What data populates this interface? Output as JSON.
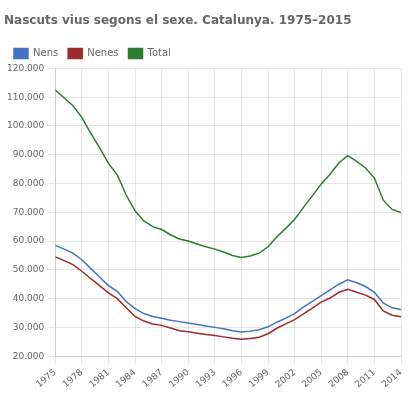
{
  "chart_data": {
    "type": "line",
    "title": "Nascuts vius segons el sexe. Catalunya. 1975–2015",
    "x": [
      1975,
      1976,
      1977,
      1978,
      1979,
      1980,
      1981,
      1982,
      1983,
      1984,
      1985,
      1986,
      1987,
      1988,
      1989,
      1990,
      1991,
      1992,
      1993,
      1994,
      1995,
      1996,
      1997,
      1998,
      1999,
      2000,
      2001,
      2002,
      2003,
      2004,
      2005,
      2006,
      2007,
      2008,
      2009,
      2010,
      2011,
      2012,
      2013,
      2014
    ],
    "series": [
      {
        "name": "Nens",
        "color": "#4472c4",
        "values": [
          58500,
          57200,
          55800,
          53500,
          50500,
          47500,
          44500,
          42500,
          39000,
          36500,
          34800,
          33800,
          33200,
          32500,
          32000,
          31500,
          31000,
          30500,
          30000,
          29500,
          28800,
          28400,
          28700,
          29200,
          30200,
          31800,
          33200,
          34800,
          37000,
          39000,
          41000,
          43000,
          45000,
          46500,
          45500,
          44200,
          42200,
          38500,
          36800,
          36200
        ]
      },
      {
        "name": "Nenes",
        "color": "#9e2a2b",
        "values": [
          54500,
          53200,
          51800,
          49500,
          47000,
          44500,
          42000,
          40000,
          36800,
          33800,
          32200,
          31200,
          30700,
          29800,
          28800,
          28500,
          28000,
          27500,
          27200,
          26700,
          26200,
          25900,
          26100,
          26600,
          27800,
          29700,
          31200,
          32700,
          34700,
          36700,
          38800,
          40200,
          42200,
          43200,
          42200,
          41200,
          39700,
          35700,
          34200,
          33700
        ]
      },
      {
        "name": "Total",
        "color": "#2e7d32",
        "values": [
          112500,
          109800,
          107000,
          103000,
          97500,
          92500,
          87000,
          83000,
          76000,
          70500,
          67000,
          65000,
          64000,
          62200,
          60700,
          60000,
          59000,
          58000,
          57200,
          56200,
          55000,
          54300,
          54800,
          55800,
          58000,
          61500,
          64400,
          67500,
          71700,
          75700,
          79800,
          83200,
          87200,
          89700,
          87700,
          85400,
          81900,
          74200,
          71000,
          69900
        ]
      }
    ],
    "xlim": [
      1975,
      2014
    ],
    "xticks": [
      1975,
      1978,
      1981,
      1984,
      1987,
      1990,
      1993,
      1996,
      1999,
      2002,
      2005,
      2008,
      2011,
      2014
    ],
    "ylim": [
      20000,
      120000
    ],
    "yticks": [
      {
        "value": 20000,
        "label": "20.000"
      },
      {
        "value": 30000,
        "label": "30.000"
      },
      {
        "value": 40000,
        "label": "40.000"
      },
      {
        "value": 50000,
        "label": "50.000"
      },
      {
        "value": 60000,
        "label": "60.000"
      },
      {
        "value": 70000,
        "label": "70.000"
      },
      {
        "value": 80000,
        "label": "80.000"
      },
      {
        "value": 90000,
        "label": "90.000"
      },
      {
        "value": 100000,
        "label": "100.000"
      },
      {
        "value": 110000,
        "label": "110.000"
      },
      {
        "value": 120000,
        "label": "120.000"
      }
    ],
    "grid": true,
    "legend": "upper left"
  }
}
